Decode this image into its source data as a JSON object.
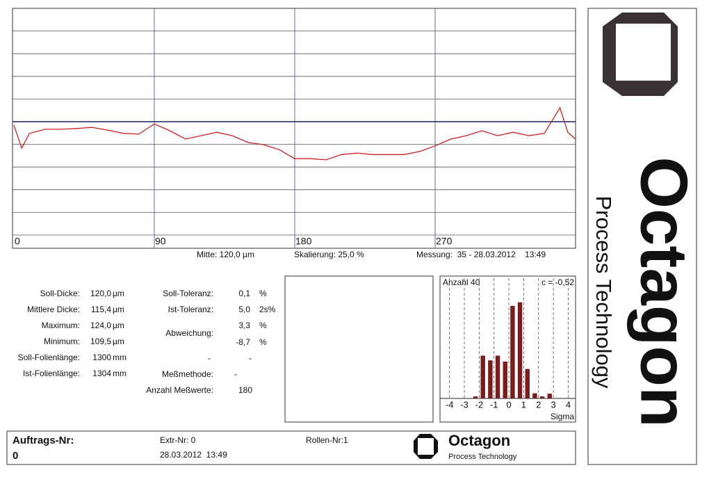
{
  "profile_chart": {
    "type": "line",
    "x": [
      0,
      5,
      10,
      20,
      30,
      40,
      50,
      60,
      70,
      80,
      90,
      100,
      110,
      120,
      130,
      140,
      150,
      160,
      170,
      180,
      190,
      200,
      210,
      220,
      230,
      240,
      250,
      260,
      270,
      280,
      290,
      300,
      310,
      320,
      330,
      340,
      350,
      355,
      360
    ],
    "values": [
      119.1,
      113.0,
      116.9,
      118.0,
      118.0,
      118.2,
      118.5,
      117.8,
      116.9,
      116.7,
      119.4,
      117.6,
      115.4,
      116.3,
      117.2,
      116.3,
      114.5,
      113.9,
      112.6,
      110.2,
      110.2,
      109.9,
      111.3,
      111.7,
      111.3,
      111.3,
      111.3,
      112.1,
      113.6,
      115.4,
      116.3,
      117.6,
      116.3,
      117.2,
      116.3,
      116.9,
      123.7,
      117.2,
      115.4
    ],
    "color": "#cc2020",
    "xlim": [
      0,
      360
    ],
    "xticks": [
      0,
      90,
      180,
      270
    ],
    "ylim": [
      90,
      150
    ],
    "grid": true,
    "center": {
      "value": 120,
      "color": "#1c1c5a"
    },
    "captions": [
      "Mitte: 120,0 µm",
      "Skalierung: 25,0 %",
      "Messung:  35 - 28.03.2012    13:49"
    ]
  },
  "stats": {
    "left": [
      [
        "Soll-Dicke:",
        "120,0",
        "µm"
      ],
      [
        "Mittlere Dicke:",
        "115,4",
        "µm"
      ],
      [
        "Maximum:",
        "124,0",
        "µm"
      ],
      [
        "Minimum:",
        "109,5",
        "µm"
      ],
      [
        "Soll-Folienlänge:",
        "1300",
        "mm"
      ],
      [
        "Ist-Folienlänge:",
        "1304",
        "mm"
      ]
    ],
    "right": {
      "soll_toleranz": [
        "Soll-Toleranz:",
        "0,1",
        "%"
      ],
      "ist_toleranz": [
        "Ist-Toleranz:",
        "5,0",
        "2s%"
      ],
      "abweichung": [
        "Abweichung:",
        "3,3",
        "%",
        "-8,7",
        "%"
      ],
      "dashes": [
        "-",
        "-"
      ],
      "messmethode": [
        "Meßmethode:",
        "-"
      ],
      "anzahl": [
        "Anzahl Meßwerte:",
        "180"
      ]
    }
  },
  "hist_chart": {
    "type": "histogram",
    "bins": [
      -2.5,
      -2.0,
      -1.5,
      -1.0,
      -0.5,
      0.0,
      0.5,
      1.0,
      1.5,
      2.0,
      2.5,
      3.0
    ],
    "values": [
      0.5,
      10.9,
      9.7,
      10.9,
      9.4,
      23.6,
      24.5,
      7.5,
      1.3,
      0.5,
      1.2
    ],
    "color": "#7a1c1c",
    "xlim": [
      -4.5,
      4.4
    ],
    "xticks": [
      -4,
      -3,
      -2,
      -1,
      0,
      1,
      2,
      3,
      4
    ],
    "ylim": [
      0,
      28
    ],
    "count_label": "Anzahl 40",
    "c_label": "c = -0,52",
    "xlabel": "Sigma"
  },
  "footer": {
    "order_label": "Auftrags-Nr:",
    "order": "0",
    "extr": "Extr-Nr: 0",
    "date": "28.03.2012  13:49",
    "rollen": "Rollen-Nr:1",
    "brand": "Octagon",
    "tagline": "Process Technology"
  },
  "side_logo": {
    "brand": "Octagon",
    "tagline": "Process Technology"
  }
}
